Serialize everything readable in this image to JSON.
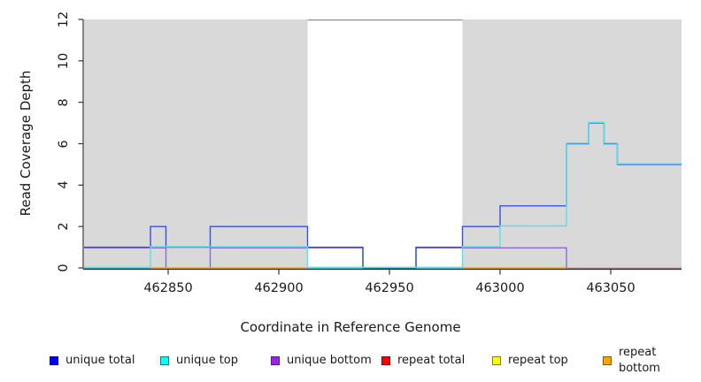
{
  "chart_data": {
    "type": "line",
    "subtype": "step-coverage",
    "title": "",
    "xlabel": "Coordinate in Reference Genome",
    "ylabel": "Read Coverage Depth",
    "xlim": [
      462812,
      463082
    ],
    "ylim": [
      0,
      12
    ],
    "x_ticks": [
      462850,
      462900,
      462950,
      463000,
      463050
    ],
    "y_ticks": [
      0,
      2,
      4,
      6,
      8,
      10,
      12
    ],
    "grid": false,
    "legend_position": "bottom-horizontal",
    "panel": {
      "shaded_color": "#d9d9d9",
      "shaded_regions": [
        [
          462812,
          462913
        ],
        [
          462983,
          463082
        ]
      ],
      "gap_region": [
        462913,
        462983
      ],
      "gap_top_border_color": "#8f8f8f"
    },
    "series": [
      {
        "name": "unique total",
        "legend_color": "#0000ff",
        "legend_border": "#000080",
        "line_color": "#3353df",
        "end": 463082,
        "steps": [
          [
            462812,
            1
          ],
          [
            462842,
            2
          ],
          [
            462849,
            1
          ],
          [
            462869,
            2
          ],
          [
            462913,
            1
          ],
          [
            462938,
            0
          ],
          [
            462962,
            1
          ],
          [
            462983,
            2
          ],
          [
            463000,
            3
          ],
          [
            463030,
            6
          ],
          [
            463040,
            7
          ],
          [
            463047,
            6
          ],
          [
            463053,
            5
          ]
        ]
      },
      {
        "name": "unique top",
        "legend_color": "#00ffff",
        "legend_border": "#007f7f",
        "line_color": "#55e2e8",
        "end": 463082,
        "steps": [
          [
            462812,
            0
          ],
          [
            462842,
            1
          ],
          [
            462913,
            0
          ],
          [
            462983,
            1
          ],
          [
            463000,
            2
          ],
          [
            463030,
            6
          ],
          [
            463040,
            7
          ],
          [
            463047,
            6
          ],
          [
            463053,
            5
          ]
        ]
      },
      {
        "name": "unique bottom",
        "legend_color": "#a020f0",
        "legend_border": "#551a8b",
        "line_color": "#8f68d8",
        "end": 463082,
        "steps": [
          [
            462812,
            1
          ],
          [
            462849,
            0
          ],
          [
            462869,
            1
          ],
          [
            462938,
            0
          ],
          [
            462962,
            1
          ],
          [
            463030,
            0
          ]
        ]
      },
      {
        "name": "repeat total",
        "legend_color": "#ff0000",
        "legend_border": "#7f0000",
        "line_color": "#d5607c",
        "end": 463082,
        "steps": [
          [
            462812,
            0
          ]
        ]
      },
      {
        "name": "repeat top",
        "legend_color": "#ffff00",
        "legend_border": "#7f7f00",
        "line_color": "#e8e455",
        "end": 463082,
        "steps": [
          [
            462812,
            0
          ]
        ]
      },
      {
        "name": "repeat bottom",
        "legend_color": "#ffa500",
        "legend_border": "#8b5a00",
        "line_color": "#ffa113",
        "end": 463030,
        "steps": [
          [
            462842,
            0
          ]
        ]
      }
    ]
  }
}
